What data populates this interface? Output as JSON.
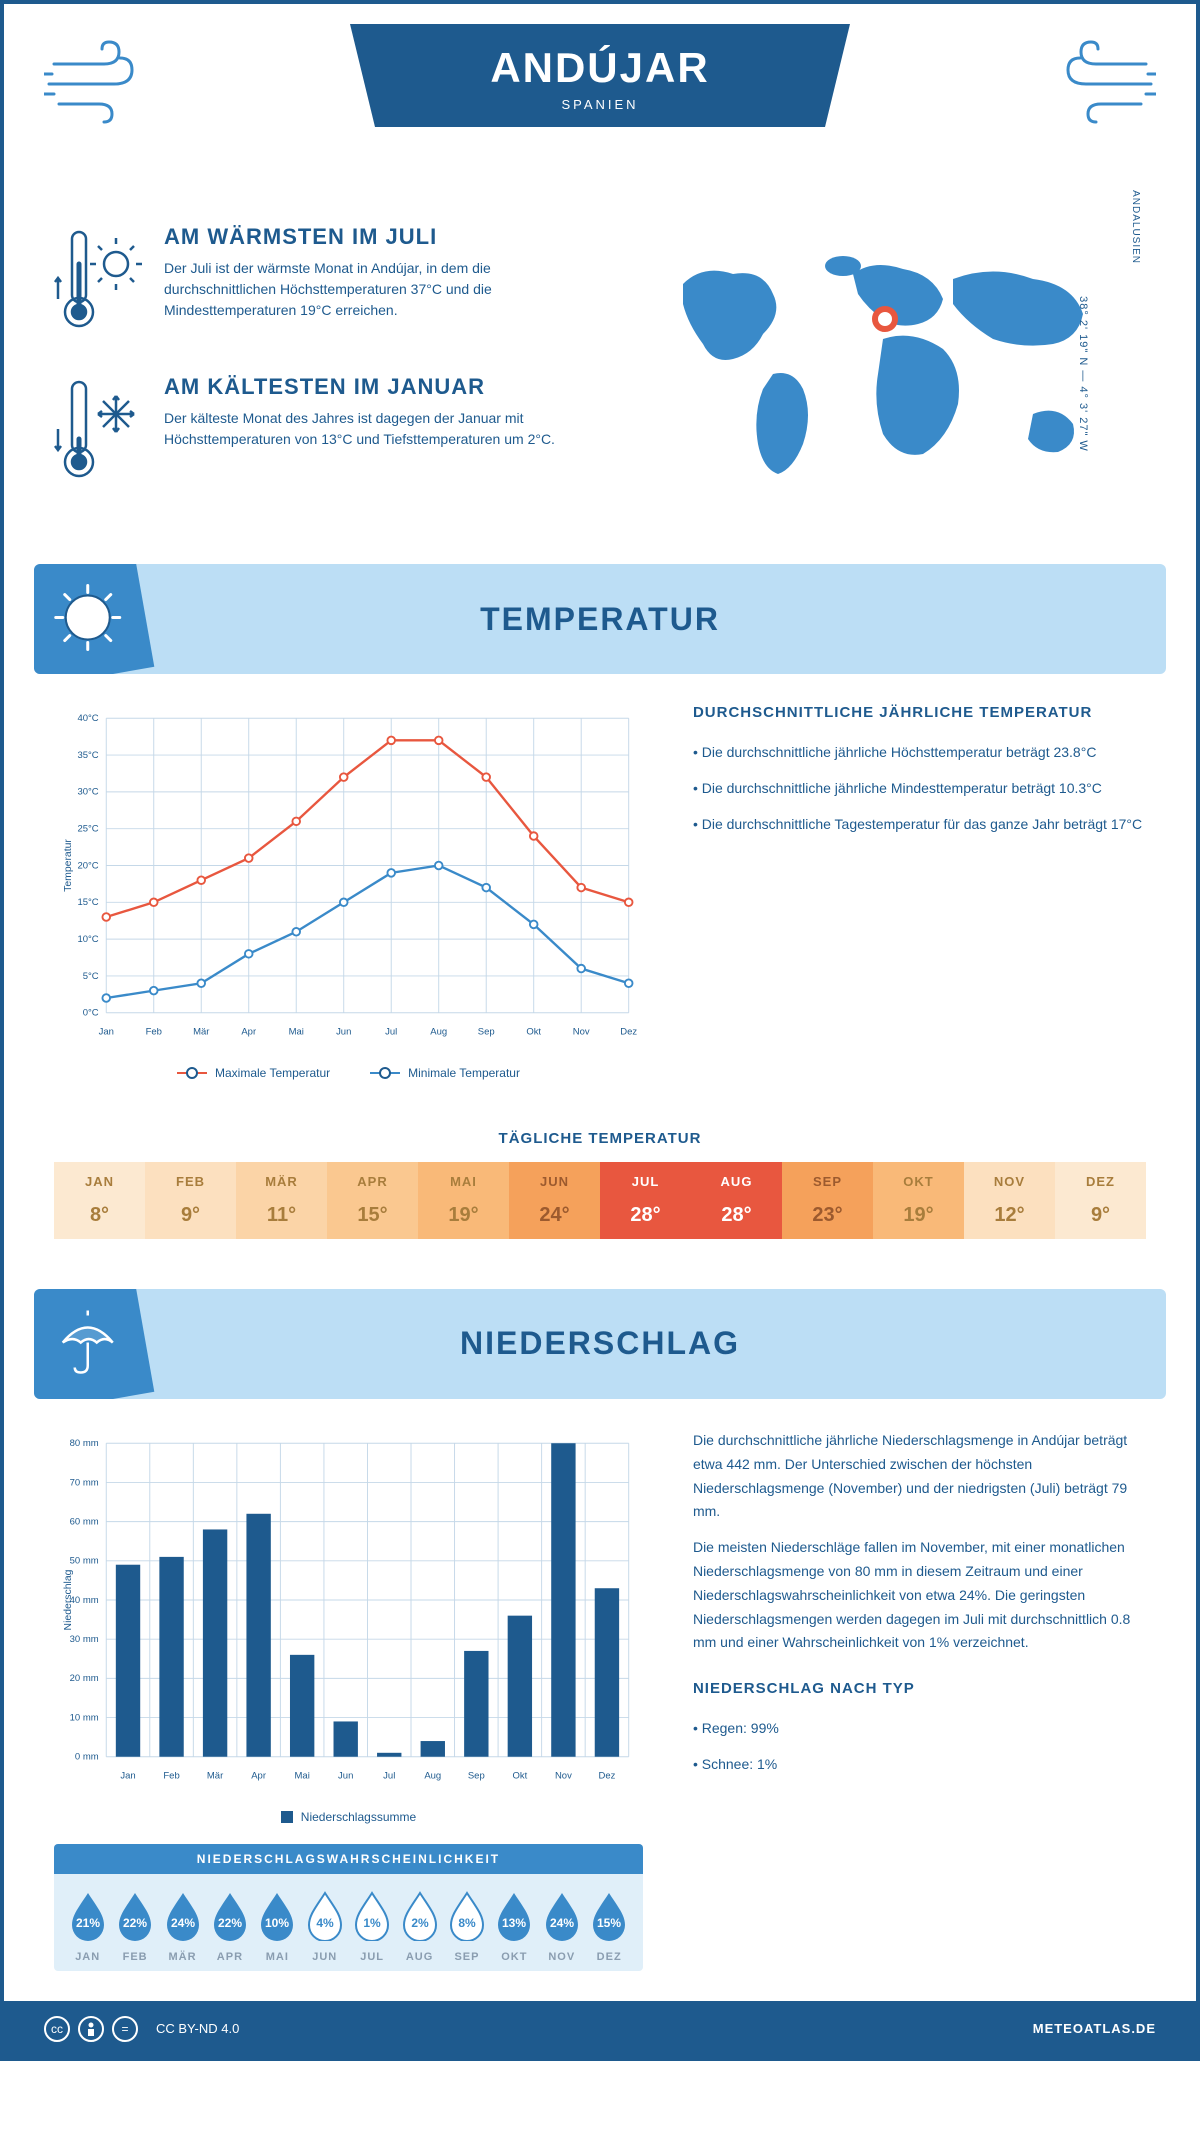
{
  "header": {
    "city": "ANDÚJAR",
    "country": "SPANIEN"
  },
  "coordinates": "38° 2' 19\" N — 4° 3' 27\" W",
  "region": "ANDALUSIEN",
  "facts": {
    "warmest": {
      "title": "AM WÄRMSTEN IM JULI",
      "text": "Der Juli ist der wärmste Monat in Andújar, in dem die durchschnittlichen Höchsttemperaturen 37°C und die Mindesttemperaturen 19°C erreichen."
    },
    "coldest": {
      "title": "AM KÄLTESTEN IM JANUAR",
      "text": "Der kälteste Monat des Jahres ist dagegen der Januar mit Höchsttemperaturen von 13°C und Tiefsttemperaturen um 2°C."
    }
  },
  "temperature": {
    "section_title": "TEMPERATUR",
    "info_title": "DURCHSCHNITTLICHE JÄHRLICHE TEMPERATUR",
    "bullets": [
      "• Die durchschnittliche jährliche Höchsttemperatur beträgt 23.8°C",
      "• Die durchschnittliche jährliche Mindesttemperatur beträgt 10.3°C",
      "• Die durchschnittliche Tagestemperatur für das ganze Jahr beträgt 17°C"
    ],
    "chart": {
      "months": [
        "Jan",
        "Feb",
        "Mär",
        "Apr",
        "Mai",
        "Jun",
        "Jul",
        "Aug",
        "Sep",
        "Okt",
        "Nov",
        "Dez"
      ],
      "max_values": [
        13,
        15,
        18,
        21,
        26,
        32,
        37,
        37,
        32,
        24,
        17,
        15
      ],
      "min_values": [
        2,
        3,
        4,
        8,
        11,
        15,
        19,
        20,
        17,
        12,
        6,
        4
      ],
      "max_color": "#e8573f",
      "min_color": "#3a8ac9",
      "gridline_color": "#c5d8e8",
      "y_min": 0,
      "y_max": 40,
      "y_step": 5,
      "y_axis_label": "Temperatur",
      "legend_max": "Maximale Temperatur",
      "legend_min": "Minimale Temperatur"
    },
    "daily_title": "TÄGLICHE TEMPERATUR",
    "daily": {
      "months": [
        "JAN",
        "FEB",
        "MÄR",
        "APR",
        "MAI",
        "JUN",
        "JUL",
        "AUG",
        "SEP",
        "OKT",
        "NOV",
        "DEZ"
      ],
      "values": [
        "8°",
        "9°",
        "11°",
        "15°",
        "19°",
        "24°",
        "28°",
        "28°",
        "23°",
        "19°",
        "12°",
        "9°"
      ],
      "bg_colors": [
        "#fce9d1",
        "#fce0bf",
        "#fbd4a7",
        "#fac890",
        "#f9b978",
        "#f5a15b",
        "#e8573f",
        "#e8573f",
        "#f5a15b",
        "#f9b978",
        "#fce0bf",
        "#fce9d1"
      ],
      "text_colors": [
        "#a87d3c",
        "#a87d3c",
        "#a87d3c",
        "#a87d3c",
        "#a87d3c",
        "#9c5a2e",
        "#ffffff",
        "#ffffff",
        "#9c5a2e",
        "#a87d3c",
        "#a87d3c",
        "#a87d3c"
      ]
    }
  },
  "precipitation": {
    "section_title": "NIEDERSCHLAG",
    "text1": "Die durchschnittliche jährliche Niederschlagsmenge in Andújar beträgt etwa 442 mm. Der Unterschied zwischen der höchsten Niederschlagsmenge (November) und der niedrigsten (Juli) beträgt 79 mm.",
    "text2": "Die meisten Niederschläge fallen im November, mit einer monatlichen Niederschlagsmenge von 80 mm in diesem Zeitraum und einer Niederschlagswahrscheinlichkeit von etwa 24%. Die geringsten Niederschlagsmengen werden dagegen im Juli mit durchschnittlich 0.8 mm und einer Wahrscheinlichkeit von 1% verzeichnet.",
    "type_title": "NIEDERSCHLAG NACH TYP",
    "type_items": [
      "• Regen: 99%",
      "• Schnee: 1%"
    ],
    "chart": {
      "months": [
        "Jan",
        "Feb",
        "Mär",
        "Apr",
        "Mai",
        "Jun",
        "Jul",
        "Aug",
        "Sep",
        "Okt",
        "Nov",
        "Dez"
      ],
      "values": [
        49,
        51,
        58,
        62,
        26,
        9,
        1,
        4,
        27,
        36,
        80,
        43
      ],
      "bar_color": "#1e5a8e",
      "gridline_color": "#c5d8e8",
      "y_min": 0,
      "y_max": 80,
      "y_step": 10,
      "y_axis_label": "Niederschlag",
      "legend": "Niederschlagssumme"
    },
    "probability": {
      "title": "NIEDERSCHLAGSWAHRSCHEINLICHKEIT",
      "months": [
        "JAN",
        "FEB",
        "MÄR",
        "APR",
        "MAI",
        "JUN",
        "JUL",
        "AUG",
        "SEP",
        "OKT",
        "NOV",
        "DEZ"
      ],
      "values": [
        "21%",
        "22%",
        "24%",
        "22%",
        "10%",
        "4%",
        "1%",
        "2%",
        "8%",
        "13%",
        "24%",
        "15%"
      ],
      "filled": [
        true,
        true,
        true,
        true,
        true,
        false,
        false,
        false,
        false,
        true,
        true,
        true
      ],
      "fill_color": "#3a8ac9",
      "empty_stroke": "#3a8ac9"
    }
  },
  "footer": {
    "license": "CC BY-ND 4.0",
    "site": "METEOATLAS.DE"
  }
}
